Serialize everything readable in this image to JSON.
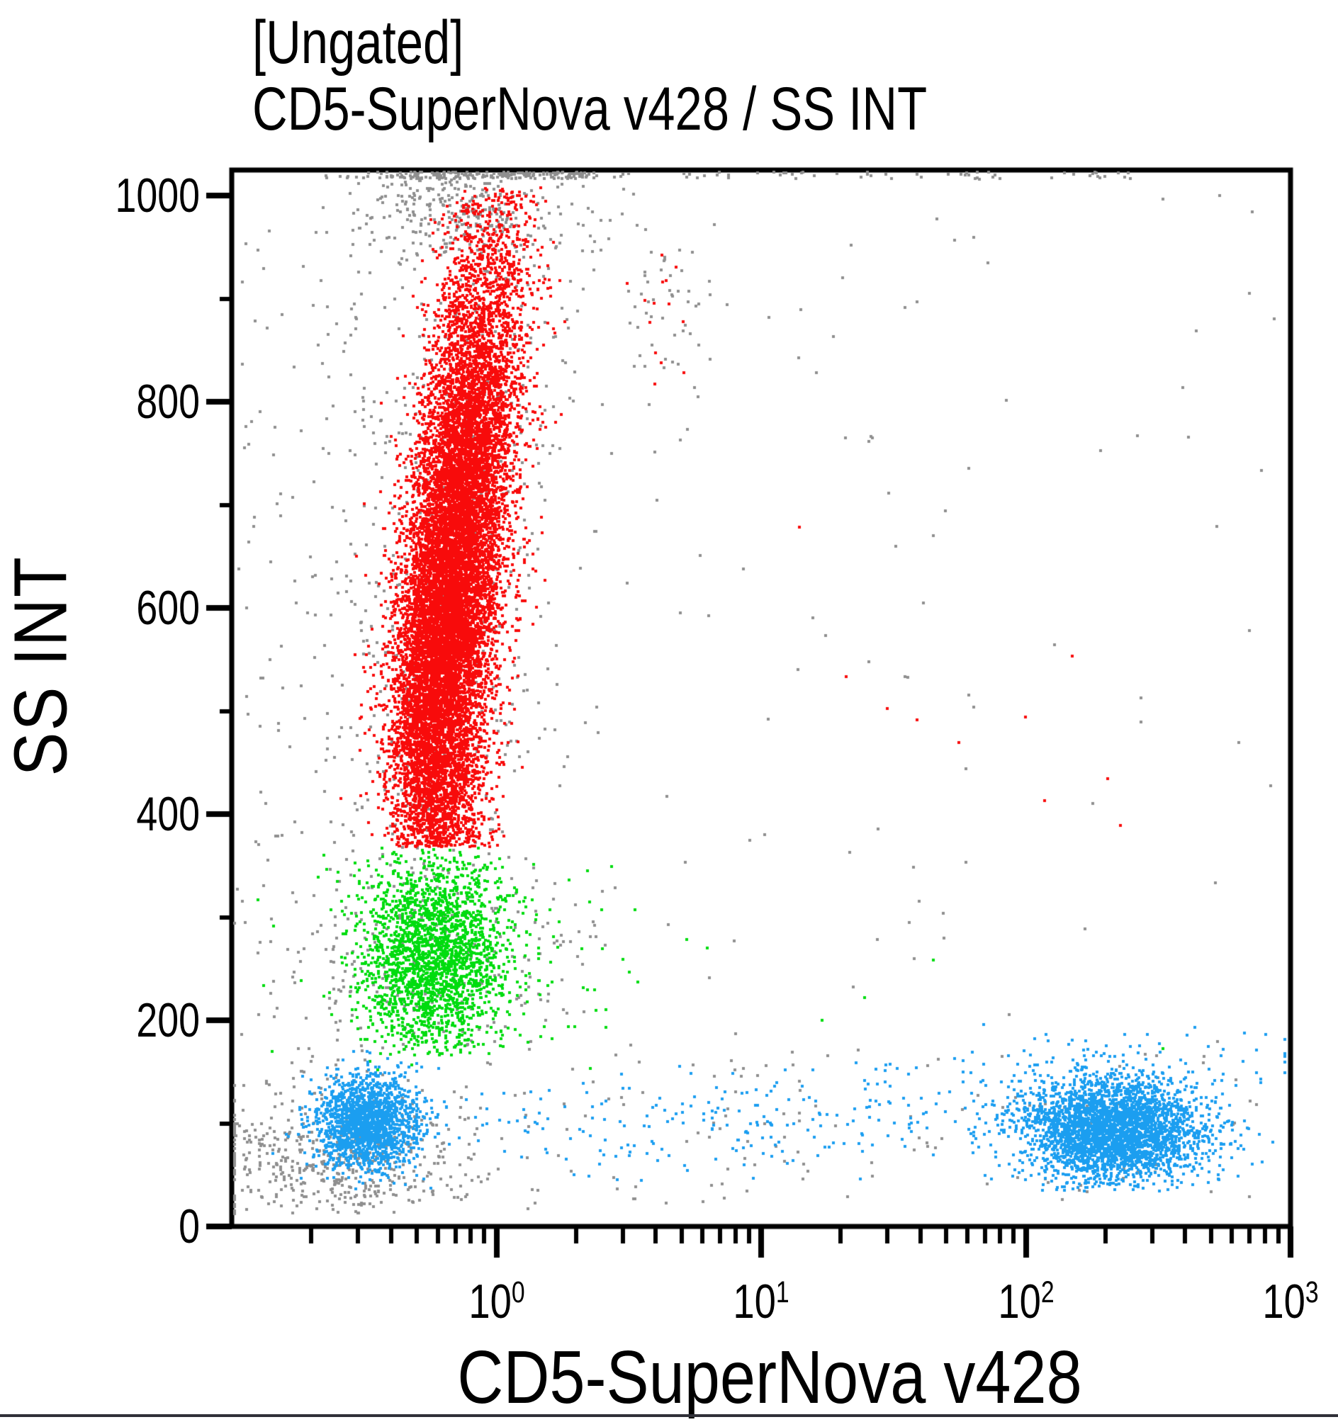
{
  "header": {
    "line1": "[Ungated]",
    "line2": "CD5-SuperNova v428 / SS INT"
  },
  "axes": {
    "x": {
      "label": "CD5-SuperNova v428",
      "scale": "log",
      "range_exp": [
        -1,
        3
      ],
      "ticks": [
        {
          "base": "10",
          "exp": "0",
          "value": 1
        },
        {
          "base": "10",
          "exp": "1",
          "value": 10
        },
        {
          "base": "10",
          "exp": "2",
          "value": 100
        },
        {
          "base": "10",
          "exp": "3",
          "value": 1000
        }
      ]
    },
    "y": {
      "label": "SS INT",
      "scale": "linear",
      "range": [
        0,
        1023
      ],
      "ticks": [
        {
          "label": "0",
          "value": 0
        },
        {
          "label": "200",
          "value": 200
        },
        {
          "label": "400",
          "value": 400
        },
        {
          "label": "600",
          "value": 600
        },
        {
          "label": "800",
          "value": 800
        },
        {
          "label": "1000",
          "value": 1000
        }
      ],
      "minor_ticks": [
        100,
        300,
        500,
        700,
        900
      ]
    }
  },
  "colors": {
    "red": "#f80b0b",
    "green": "#00dc0f",
    "blue": "#1b9ef0",
    "gray": "#8f8f8f",
    "frame": "#000000",
    "divider": "#303038"
  },
  "chart_data": {
    "type": "scatter",
    "title": "[Ungated] CD5-SuperNova v428 / SS INT",
    "xlabel": "CD5-SuperNova v428",
    "ylabel": "SS INT",
    "x_axis": {
      "scale": "log",
      "range": [
        0.1,
        1000
      ],
      "tick_values": [
        1,
        10,
        100,
        1000
      ]
    },
    "y_axis": {
      "scale": "linear",
      "range": [
        0,
        1023
      ],
      "tick_values": [
        0,
        200,
        400,
        600,
        800,
        1000
      ]
    },
    "marker_size": 4,
    "legend": "none",
    "grid": false,
    "populations": [
      {
        "name": "debris-bottom-left",
        "color": "gray",
        "n": 480,
        "x_log_mean": -0.62,
        "x_log_sd": 0.26,
        "y_mean": 62,
        "y_sd": 34,
        "y_clip": [
          12,
          170
        ]
      },
      {
        "name": "granulocyte-halo",
        "color": "gray",
        "n": 430,
        "x_log_mean": -0.21,
        "x_log_sd": 0.21,
        "y_mean": 610,
        "y_sd": 235,
        "y_clip": [
          378,
          1012
        ],
        "tilt": 0.00045,
        "tilt_from": 500
      },
      {
        "name": "top-cap-debris",
        "color": "gray",
        "n": 240,
        "x_log_mean": -0.14,
        "x_log_sd": 0.17,
        "y_mean": 985,
        "y_sd": 28,
        "y_clip": [
          944,
          1015
        ]
      },
      {
        "name": "monocyte-halo",
        "color": "gray",
        "n": 250,
        "x_log_mean": -0.2,
        "x_log_sd": 0.3,
        "y_mean": 265,
        "y_sd": 68,
        "y_clip": [
          168,
          372
        ]
      },
      {
        "name": "satellite-debris",
        "color": "gray",
        "n": 46,
        "x_log_mean": 0.63,
        "x_log_sd": 0.1,
        "y_mean": 880,
        "y_sd": 48,
        "y_clip": [
          755,
          978
        ]
      },
      {
        "name": "monocytes",
        "color": "green",
        "n": 2100,
        "x_log_mean": -0.24,
        "x_log_sd": 0.14,
        "y_mean": 262,
        "y_sd": 50,
        "y_clip": [
          166,
          366
        ]
      },
      {
        "name": "monocyte-scatter",
        "color": "green",
        "n": 150,
        "x_log_mean": -0.08,
        "x_log_sd": 0.32,
        "y_mean": 260,
        "y_sd": 72,
        "y_clip": [
          148,
          368
        ]
      },
      {
        "name": "granulocytes",
        "color": "red",
        "n": 13500,
        "x_log_mean": -0.225,
        "x_log_sd": 0.092,
        "y_mean": 615,
        "y_sd": 168,
        "y_clip": [
          368,
          1008
        ],
        "x_log_clip": [
          -0.62,
          0.5
        ],
        "tilt": 0.00045,
        "tilt_from": 500
      },
      {
        "name": "granulocyte-satellite",
        "color": "red",
        "n": 14,
        "x_log_mean": 0.64,
        "x_log_sd": 0.09,
        "y_mean": 893,
        "y_sd": 42,
        "y_clip": [
          788,
          962
        ]
      },
      {
        "name": "lymphocytes-cd5neg",
        "color": "blue",
        "n": 1700,
        "x_log_mean": -0.49,
        "x_log_sd": 0.095,
        "y_mean": 100,
        "y_sd": 23,
        "y_clip": [
          34,
          176
        ]
      },
      {
        "name": "lymphocytes-cd5pos",
        "color": "blue",
        "n": 3200,
        "x_log_mean": 2.33,
        "x_log_sd": 0.17,
        "y_mean": 92,
        "y_sd": 25,
        "y_clip": [
          34,
          186
        ],
        "x_log_clip": [
          1.05,
          2.99
        ]
      },
      {
        "name": "lymph-upper-fringe",
        "color": "blue",
        "n": 110,
        "x_log_mean": 2.3,
        "x_log_sd": 0.38,
        "y_mean": 152,
        "y_sd": 20,
        "y_clip": [
          118,
          198
        ],
        "x_log_clip": [
          1.25,
          2.98
        ]
      },
      {
        "name": "lymph-bridge",
        "color": "blue",
        "n": 260,
        "x_log_mean": 0.85,
        "x_log_sd": 0.78,
        "y_mean": 100,
        "y_sd": 26,
        "y_clip": [
          44,
          172
        ],
        "x_log_clip": [
          -0.3,
          2.1
        ]
      }
    ],
    "uniform_scatter": [
      {
        "name": "left-column-debris",
        "color": "gray",
        "n": 210,
        "x_log_range": [
          -0.98,
          -0.28
        ],
        "y_range": [
          170,
          1005
        ]
      },
      {
        "name": "mid-right-debris",
        "color": "gray",
        "n": 50,
        "x_log_range": [
          0.35,
          1.6
        ],
        "y_range": [
          175,
          1005
        ]
      },
      {
        "name": "far-right-debris",
        "color": "gray",
        "n": 35,
        "x_log_range": [
          1.6,
          2.95
        ],
        "y_range": [
          175,
          1005
        ]
      },
      {
        "name": "bottom-band-debris",
        "color": "gray",
        "n": 190,
        "x_log_range": [
          -0.98,
          2.9
        ],
        "y_range": [
          22,
          172
        ]
      },
      {
        "name": "pegged-top-row-wide",
        "color": "gray",
        "n": 100,
        "x_log_range": [
          -0.65,
          2.4
        ],
        "y_range": [
          1016,
          1023
        ]
      },
      {
        "name": "pegged-top-row-dense",
        "color": "gray",
        "n": 170,
        "x_log_range": [
          -0.4,
          0.4
        ],
        "y_range": [
          1016,
          1023
        ]
      },
      {
        "name": "above-gran-debris",
        "color": "gray",
        "n": 55,
        "x_log_range": [
          -0.55,
          0.6
        ],
        "y_range": [
          870,
          1014
        ]
      }
    ],
    "outliers": [
      {
        "color": "red",
        "x": 21,
        "y": 533
      },
      {
        "color": "red",
        "x": 30,
        "y": 502
      },
      {
        "color": "red",
        "x": 39,
        "y": 491
      },
      {
        "color": "red",
        "x": 56,
        "y": 469
      },
      {
        "color": "red",
        "x": 14,
        "y": 678
      },
      {
        "color": "red",
        "x": 100,
        "y": 494
      },
      {
        "color": "red",
        "x": 150,
        "y": 553
      },
      {
        "color": "red",
        "x": 204,
        "y": 434
      },
      {
        "color": "red",
        "x": 118,
        "y": 413
      },
      {
        "color": "red",
        "x": 228,
        "y": 389
      },
      {
        "color": "green",
        "x": 330,
        "y": 172
      },
      {
        "color": "green",
        "x": 24.6,
        "y": 222
      },
      {
        "color": "green",
        "x": 17,
        "y": 200
      },
      {
        "color": "green",
        "x": 45,
        "y": 258
      },
      {
        "color": "green",
        "x": 2.6,
        "y": 210
      },
      {
        "color": "gray",
        "x": 700,
        "y": 905
      },
      {
        "color": "gray",
        "x": 870,
        "y": 880
      },
      {
        "color": "gray",
        "x": 540,
        "y": 1000
      }
    ]
  }
}
